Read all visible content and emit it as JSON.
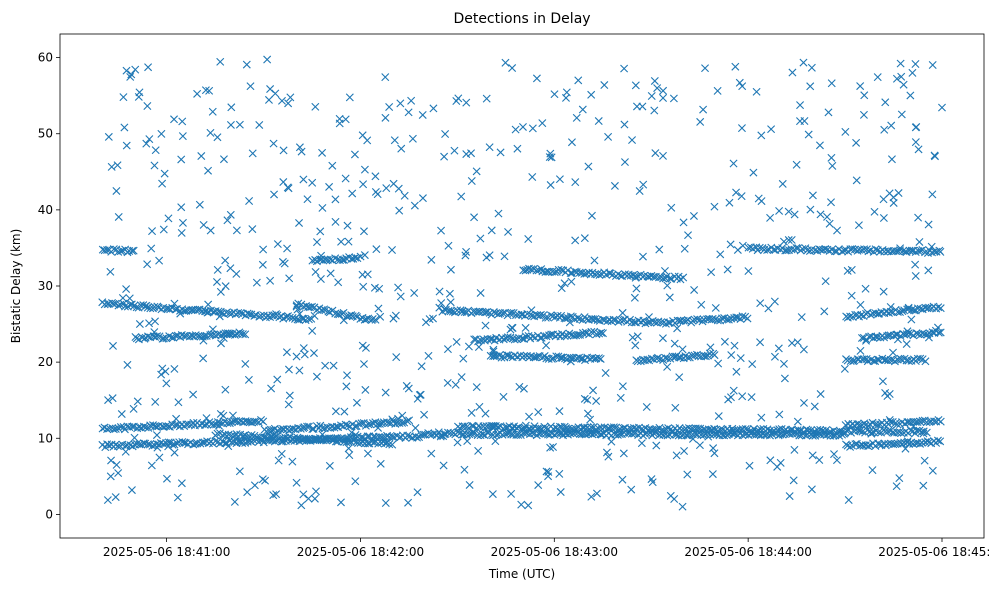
{
  "chart_data": {
    "type": "scatter",
    "title": "Detections in Delay",
    "xlabel": "Time (UTC)",
    "ylabel": "Bistatic Delay (km)",
    "marker": "x",
    "color": "#1f77b4",
    "grid": false,
    "x_axis_type": "datetime",
    "xlim": [
      "2025-05-06 18:40:27",
      "2025-05-06 18:45:13"
    ],
    "ylim": [
      -3.1,
      63.1
    ],
    "x_ticks": [
      "2025-05-06 18:41:00",
      "2025-05-06 18:42:00",
      "2025-05-06 18:43:00",
      "2025-05-06 18:44:00",
      "2025-05-06 18:45:00"
    ],
    "y_ticks": [
      0,
      10,
      20,
      30,
      40,
      50,
      60
    ],
    "data_start": "2025-05-06 18:40:40",
    "data_end": "2025-05-06 18:45:00",
    "tracks": [
      {
        "start": "2025-05-06 18:40:40",
        "end": "2025-05-06 18:41:30",
        "y_start": 11.2,
        "y_end": 12.3
      },
      {
        "start": "2025-05-06 18:41:30",
        "end": "2025-05-06 18:42:15",
        "y_start": 11.0,
        "y_end": 12.2
      },
      {
        "start": "2025-05-06 18:42:30",
        "end": "2025-05-06 18:44:55",
        "y_start": 11.5,
        "y_end": 10.8
      },
      {
        "start": "2025-05-06 18:40:40",
        "end": "2025-05-06 18:42:20",
        "y_start": 9.0,
        "y_end": 10.3
      },
      {
        "start": "2025-05-06 18:41:15",
        "end": "2025-05-06 18:42:10",
        "y_start": 10.5,
        "y_end": 9.3
      },
      {
        "start": "2025-05-06 18:42:20",
        "end": "2025-05-06 18:44:30",
        "y_start": 10.6,
        "y_end": 10.5
      },
      {
        "start": "2025-05-06 18:44:30",
        "end": "2025-05-06 18:45:00",
        "y_start": 9.0,
        "y_end": 9.6
      },
      {
        "start": "2025-05-06 18:44:30",
        "end": "2025-05-06 18:45:00",
        "y_start": 11.7,
        "y_end": 12.3
      },
      {
        "start": "2025-05-06 18:40:40",
        "end": "2025-05-06 18:41:45",
        "y_start": 27.7,
        "y_end": 25.6
      },
      {
        "start": "2025-05-06 18:41:40",
        "end": "2025-05-06 18:42:05",
        "y_start": 27.6,
        "y_end": 25.4
      },
      {
        "start": "2025-05-06 18:42:25",
        "end": "2025-05-06 18:43:35",
        "y_start": 26.8,
        "y_end": 25.1
      },
      {
        "start": "2025-05-06 18:43:35",
        "end": "2025-05-06 18:44:00",
        "y_start": 25.2,
        "y_end": 25.9
      },
      {
        "start": "2025-05-06 18:44:30",
        "end": "2025-05-06 18:45:00",
        "y_start": 26.0,
        "y_end": 27.3
      },
      {
        "start": "2025-05-06 18:40:50",
        "end": "2025-05-06 18:41:25",
        "y_start": 23.1,
        "y_end": 23.8
      },
      {
        "start": "2025-05-06 18:42:35",
        "end": "2025-05-06 18:43:15",
        "y_start": 22.8,
        "y_end": 23.9
      },
      {
        "start": "2025-05-06 18:44:35",
        "end": "2025-05-06 18:45:00",
        "y_start": 23.1,
        "y_end": 24.0
      },
      {
        "start": "2025-05-06 18:42:50",
        "end": "2025-05-06 18:43:40",
        "y_start": 32.2,
        "y_end": 31.0
      },
      {
        "start": "2025-05-06 18:40:40",
        "end": "2025-05-06 18:40:50",
        "y_start": 34.7,
        "y_end": 34.6
      },
      {
        "start": "2025-05-06 18:44:00",
        "end": "2025-05-06 18:45:00",
        "y_start": 34.9,
        "y_end": 34.5
      },
      {
        "start": "2025-05-06 18:41:45",
        "end": "2025-05-06 18:42:00",
        "y_start": 33.4,
        "y_end": 33.7
      },
      {
        "start": "2025-05-06 18:42:40",
        "end": "2025-05-06 18:43:15",
        "y_start": 20.8,
        "y_end": 20.4
      },
      {
        "start": "2025-05-06 18:43:25",
        "end": "2025-05-06 18:43:50",
        "y_start": 20.2,
        "y_end": 21.0
      },
      {
        "start": "2025-05-06 18:44:30",
        "end": "2025-05-06 18:44:55",
        "y_start": 20.3,
        "y_end": 20.3
      }
    ],
    "scatter_count": 700
  }
}
